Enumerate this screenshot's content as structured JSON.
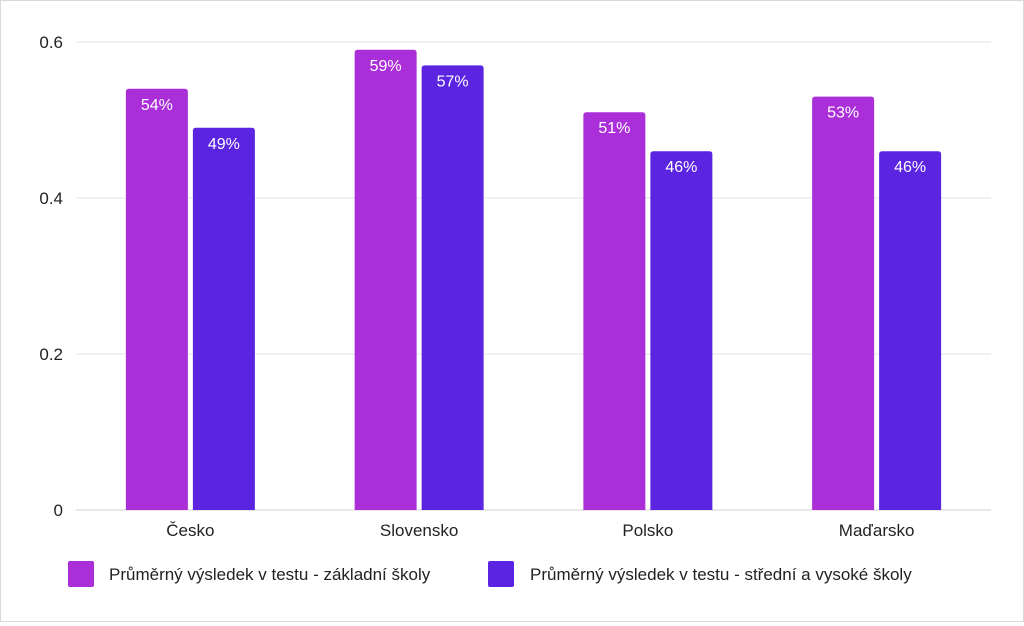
{
  "chart_data": {
    "type": "bar",
    "categories": [
      "Česko",
      "Slovensko",
      "Polsko",
      "Maďarsko"
    ],
    "series": [
      {
        "name": "Průměrný výsledek v testu - základní školy",
        "values": [
          0.54,
          0.59,
          0.51,
          0.53
        ],
        "labels": [
          "54%",
          "59%",
          "51%",
          "53%"
        ],
        "color": "#AB2FD9"
      },
      {
        "name": "Průměrný výsledek v testu - střední a vysoké školy",
        "values": [
          0.49,
          0.57,
          0.46,
          0.46
        ],
        "labels": [
          "49%",
          "57%",
          "46%",
          "46%"
        ],
        "color": "#5B24E0"
      }
    ],
    "y_ticks": [
      "0",
      "0.2",
      "0.4",
      "0.6"
    ],
    "ylim": [
      0,
      0.6
    ],
    "grid": true,
    "legend_position": "bottom"
  }
}
